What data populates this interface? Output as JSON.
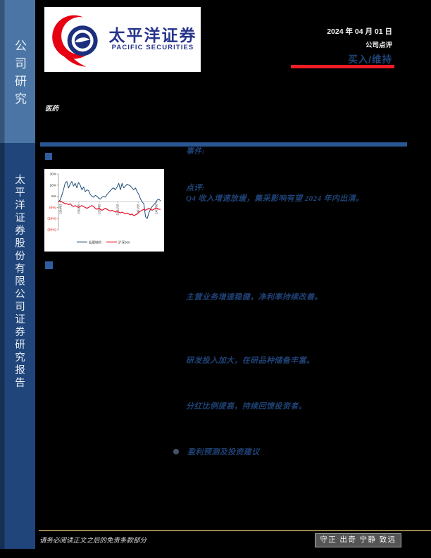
{
  "sidebar": {
    "top_label": "公司研究",
    "bottom_label": "太平洋证券股份有限公司证券研究报告"
  },
  "header": {
    "logo_cn": "太平洋证券",
    "logo_en": "PACIFIC SECURITIES",
    "date": "2024 年 04 月 01 日",
    "report_type": "公司点评",
    "rating": "买入/维持",
    "industry": "医药",
    "rating_underline_color": "#EE1C25"
  },
  "content": {
    "event_label": "事件:",
    "comment_label": "点评:",
    "comment_line": "Q4 收入增速放缓，集采影响有望 2024 年内出清。",
    "para1": "主营业务增速稳健，净利率持续改善。",
    "para2": "研发投入加大，在研品种储备丰富。",
    "para3": "分红比例提高，持续回馈投资者。",
    "bullet_item": "盈利预测及投资建议"
  },
  "chart_data": {
    "type": "line",
    "title": "",
    "xlabel": "",
    "ylabel": "",
    "ylim": [
      -30,
      30
    ],
    "grid": false,
    "legend_position": "bottom",
    "negative_tick_color": "#D40000",
    "yticks": [
      {
        "label": "30%",
        "value": 30
      },
      {
        "label": "18%",
        "value": 18
      },
      {
        "label": "6%",
        "value": 6
      },
      {
        "label": "(6%)",
        "value": -6
      },
      {
        "label": "(18%)",
        "value": -18
      },
      {
        "label": "(30%)",
        "value": -30
      }
    ],
    "xticks": [
      {
        "label": "23/4/03",
        "pos": 0.02
      },
      {
        "label": "23/6/15",
        "pos": 0.2
      },
      {
        "label": "23/9/05",
        "pos": 0.4
      },
      {
        "label": "23/11/15",
        "pos": 0.58
      },
      {
        "label": "24/1/26",
        "pos": 0.78
      },
      {
        "label": "24/3/08",
        "pos": 0.96
      }
    ],
    "series": [
      {
        "name": "仙琚制药",
        "color": "#1F4E79",
        "values": [
          0,
          2,
          7,
          13,
          20,
          22,
          15,
          19,
          22,
          17,
          20,
          15,
          21,
          18,
          13,
          16,
          11,
          13,
          12,
          8,
          6,
          5,
          7,
          6,
          4,
          3,
          5,
          6,
          5,
          8,
          10,
          12,
          14,
          15,
          13,
          16,
          20,
          13,
          20,
          15,
          17,
          19,
          18,
          17,
          15,
          13,
          15,
          11,
          8,
          3,
          0,
          -2,
          -16,
          -18,
          -12,
          -8,
          -5,
          -3,
          -1,
          2,
          3,
          1
        ]
      },
      {
        "name": "沪深300",
        "color": "#E8112D",
        "values": [
          0,
          1,
          0,
          -1,
          -2,
          -2,
          -3,
          -2,
          -4,
          -5,
          -4,
          -5,
          -6,
          -5,
          -4,
          -5,
          -6,
          -7,
          -6,
          -5,
          -4,
          -5,
          -7,
          -8,
          -7,
          -8,
          -9,
          -8,
          -7,
          -8,
          -9,
          -10,
          -9,
          -10,
          -11,
          -10,
          -11,
          -12,
          -11,
          -12,
          -13,
          -12,
          -13,
          -14,
          -13,
          -15,
          -14,
          -13,
          -11,
          -10,
          -9,
          -8,
          -9,
          -8,
          -7,
          -8,
          -9,
          -8,
          -7,
          -7,
          -8,
          -8
        ]
      }
    ]
  },
  "footer": {
    "disclaimer": "请务必阅读正文之后的免责条款部分",
    "motto": "守正 出奇 宁静 致远"
  }
}
